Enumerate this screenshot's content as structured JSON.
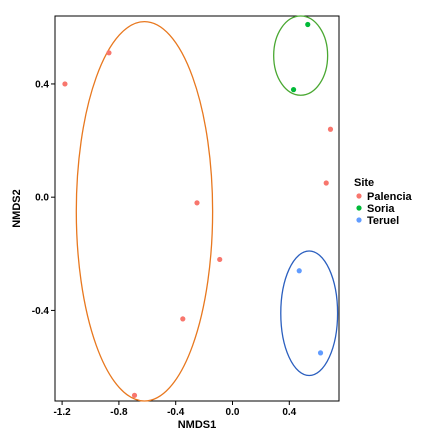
{
  "chart_data": {
    "type": "scatter",
    "xlabel": "NMDS1",
    "ylabel": "NMDS2",
    "xlim": [
      -1.25,
      0.75
    ],
    "ylim": [
      -0.72,
      0.64
    ],
    "x_ticks": [
      {
        "value": -1.2,
        "label": "-1.2"
      },
      {
        "value": -0.8,
        "label": "-0.8"
      },
      {
        "value": -0.4,
        "label": "-0.4"
      },
      {
        "value": 0.0,
        "label": "0.0"
      },
      {
        "value": 0.4,
        "label": "0.4"
      }
    ],
    "y_ticks": [
      {
        "value": 0.4,
        "label": "0.4"
      },
      {
        "value": 0.0,
        "label": "0.0"
      },
      {
        "value": -0.4,
        "label": "-0.4"
      }
    ],
    "grid": false,
    "legend": {
      "title": "Site",
      "placement": "right"
    },
    "series": [
      {
        "name": "Palencia",
        "color": "#f8766d",
        "points": [
          {
            "x": -1.18,
            "y": 0.4
          },
          {
            "x": -0.87,
            "y": 0.51
          },
          {
            "x": -0.25,
            "y": -0.02
          },
          {
            "x": -0.09,
            "y": -0.22
          },
          {
            "x": -0.35,
            "y": -0.43
          },
          {
            "x": -0.69,
            "y": -0.7
          },
          {
            "x": 0.69,
            "y": 0.24
          },
          {
            "x": 0.66,
            "y": 0.05
          }
        ],
        "ellipse": {
          "cx": -0.62,
          "cy": -0.05,
          "rx": 0.48,
          "ry": 0.67,
          "color": "#e8781f"
        }
      },
      {
        "name": "Soria",
        "color": "#00ba38",
        "points": [
          {
            "x": 0.53,
            "y": 0.61
          },
          {
            "x": 0.43,
            "y": 0.38
          }
        ],
        "ellipse": {
          "cx": 0.48,
          "cy": 0.5,
          "rx": 0.19,
          "ry": 0.14,
          "color": "#4aa832"
        }
      },
      {
        "name": "Teruel",
        "color": "#619cff",
        "points": [
          {
            "x": 0.47,
            "y": -0.26
          },
          {
            "x": 0.62,
            "y": -0.55
          }
        ],
        "ellipse": {
          "cx": 0.54,
          "cy": -0.41,
          "rx": 0.2,
          "ry": 0.22,
          "color": "#2b5fbf"
        }
      }
    ]
  }
}
